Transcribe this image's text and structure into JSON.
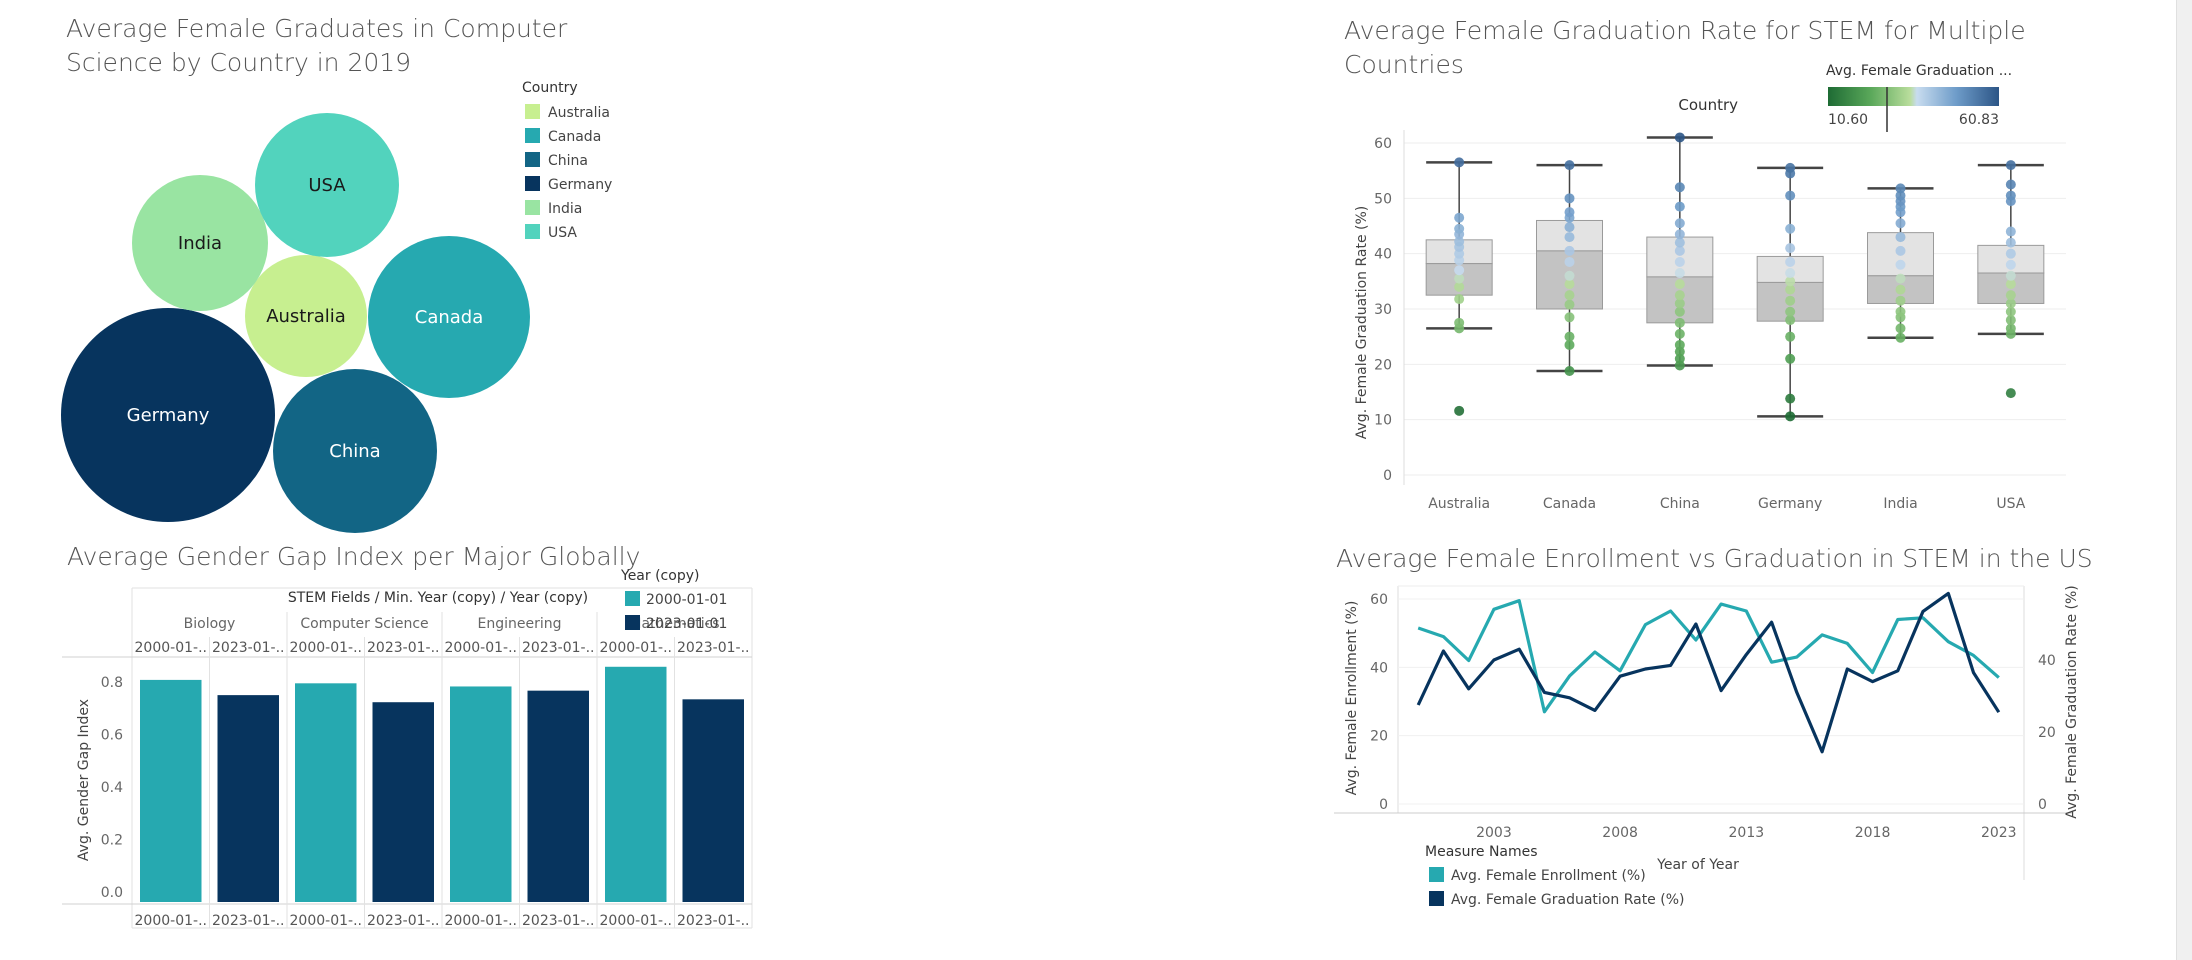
{
  "chart_data": [
    {
      "type": "bubble",
      "title": "Average Female Graduates in Computer Science by Country in 2019",
      "title_lines": [
        "Average Female Graduates in Computer",
        "Science by Country in 2019"
      ],
      "legend_title": "Country",
      "bubbles": [
        {
          "label": "Australia",
          "color": "#c7ef90"
        },
        {
          "label": "Canada",
          "color": "#26a9b0"
        },
        {
          "label": "China",
          "color": "#126585"
        },
        {
          "label": "Germany",
          "color": "#07345e"
        },
        {
          "label": "India",
          "color": "#99e4a2"
        },
        {
          "label": "USA",
          "color": "#52d3bd"
        }
      ]
    },
    {
      "type": "boxplot",
      "title": "Average Female Graduation Rate for STEM for Multiple Countries",
      "title_lines": [
        "Average Female Graduation Rate for STEM for Multiple",
        "Countries"
      ],
      "ylabel": "Avg. Female Graduation Rate (%)",
      "xlabel_header": "Country",
      "ylim": [
        0,
        62
      ],
      "yticks": [
        0,
        10,
        20,
        30,
        40,
        50,
        60
      ],
      "color_legend": {
        "title": "Avg. Female Graduation ...",
        "min_label": "10.60",
        "max_label": "60.83",
        "min": 10.6,
        "max": 60.83
      },
      "categories": [
        "Australia",
        "Canada",
        "China",
        "Germany",
        "India",
        "USA"
      ],
      "boxes": [
        {
          "whisker_low": 26.5,
          "q1": 32.5,
          "median": 38.2,
          "q3": 42.5,
          "whisker_high": 56.5,
          "points": [
            11.6,
            26.5,
            27.5,
            31.8,
            34.0,
            35.5,
            37.0,
            38.8,
            40.0,
            41.2,
            42.2,
            43.5,
            44.5,
            46.5,
            56.5
          ]
        },
        {
          "whisker_low": 18.8,
          "q1": 30.0,
          "median": 40.5,
          "q3": 46.0,
          "whisker_high": 56.0,
          "points": [
            18.8,
            23.5,
            25.0,
            28.5,
            30.8,
            32.5,
            34.5,
            36.0,
            38.5,
            40.5,
            43.0,
            44.8,
            46.5,
            47.5,
            50.0,
            56.0
          ]
        },
        {
          "whisker_low": 19.8,
          "q1": 27.5,
          "median": 35.8,
          "q3": 43.0,
          "whisker_high": 61.0,
          "points": [
            19.8,
            21.0,
            22.3,
            23.5,
            25.5,
            27.5,
            29.5,
            31.0,
            32.5,
            34.5,
            36.5,
            38.5,
            40.5,
            42.0,
            43.5,
            45.5,
            48.5,
            52.0,
            61.0
          ]
        },
        {
          "whisker_low": 10.6,
          "q1": 27.8,
          "median": 34.8,
          "q3": 39.5,
          "whisker_high": 55.5,
          "points": [
            10.6,
            13.8,
            21.0,
            25.0,
            28.0,
            29.5,
            31.5,
            33.5,
            35.0,
            36.5,
            38.5,
            41.0,
            44.5,
            50.5,
            54.5,
            55.5
          ]
        },
        {
          "whisker_low": 24.8,
          "q1": 31.0,
          "median": 36.0,
          "q3": 43.8,
          "whisker_high": 51.8,
          "points": [
            24.8,
            26.5,
            28.5,
            29.5,
            31.5,
            33.5,
            35.5,
            38.0,
            40.5,
            43.0,
            45.5,
            47.5,
            48.5,
            49.5,
            50.5,
            51.8
          ]
        },
        {
          "whisker_low": 25.5,
          "q1": 31.0,
          "median": 36.5,
          "q3": 41.5,
          "whisker_high": 56.0,
          "points": [
            14.8,
            25.5,
            26.5,
            28.0,
            29.5,
            31.0,
            32.5,
            34.5,
            36.0,
            38.0,
            40.0,
            42.0,
            44.0,
            49.5,
            50.5,
            52.5,
            56.0
          ]
        }
      ]
    },
    {
      "type": "bar",
      "title": "Average Gender Gap Index per Major Globally",
      "header": "STEM Fields / Min. Year (copy) / Year (copy)",
      "legend_title": "Year (copy)",
      "legend": [
        {
          "label": "2000-01-01",
          "color": "#26a9b0"
        },
        {
          "label": "2023-01-01",
          "color": "#07345e"
        }
      ],
      "ylabel": "Avg. Gender Gap Index",
      "ylim": [
        0,
        0.88
      ],
      "yticks": [
        "0.0",
        "0.2",
        "0.4",
        "0.6",
        "0.8"
      ],
      "groups": [
        "Biology",
        "Computer Science",
        "Engineering",
        "Mathematics"
      ],
      "column_labels": [
        "2000-01-..",
        "2023-01-..",
        "2000-01-..",
        "2023-01-..",
        "2000-01-..",
        "2023-01-..",
        "2000-01-..",
        "2023-01-.."
      ],
      "series": [
        {
          "name": "2000-01-01",
          "values": [
            0.808,
            0.795,
            0.783,
            0.858
          ]
        },
        {
          "name": "2023-01-01",
          "values": [
            0.75,
            0.723,
            0.767,
            0.734
          ]
        }
      ]
    },
    {
      "type": "line",
      "title": "Average Female Enrollment vs Graduation in STEM in the US",
      "ylabel_left": "Avg. Female Enrollment (%)",
      "ylabel_right": "Avg. Female Graduation Rate (%)",
      "xlabel": "Year of Year",
      "yticks_left": [
        0,
        20,
        40,
        60
      ],
      "yticks_right": [
        0,
        20,
        40
      ],
      "xticks": [
        2003,
        2008,
        2013,
        2018,
        2023
      ],
      "legend_title": "Measure Names",
      "x": [
        2000,
        2001,
        2002,
        2003,
        2004,
        2005,
        2006,
        2007,
        2008,
        2009,
        2010,
        2011,
        2012,
        2013,
        2014,
        2015,
        2016,
        2017,
        2018,
        2019,
        2020,
        2021,
        2022,
        2023
      ],
      "series": [
        {
          "name": "Avg. Female Enrollment (%)",
          "color": "#26a9b0",
          "axis": "left",
          "values": [
            51.5,
            49.0,
            42.0,
            57.0,
            59.5,
            27.0,
            37.5,
            44.5,
            39.0,
            52.5,
            56.5,
            48.0,
            58.5,
            56.5,
            41.5,
            43.0,
            49.5,
            47.0,
            38.5,
            54.0,
            54.5,
            47.5,
            43.5,
            37.0
          ]
        },
        {
          "name": "Avg. Female Graduation Rate (%)",
          "color": "#07345e",
          "axis": "right",
          "values": [
            27.5,
            42.5,
            32.0,
            40.0,
            43.0,
            31.0,
            29.5,
            26.0,
            35.5,
            37.5,
            38.5,
            50.0,
            31.5,
            41.5,
            50.5,
            31.0,
            14.5,
            37.5,
            34.0,
            37.0,
            53.5,
            58.5,
            36.5,
            25.5
          ]
        }
      ]
    }
  ]
}
